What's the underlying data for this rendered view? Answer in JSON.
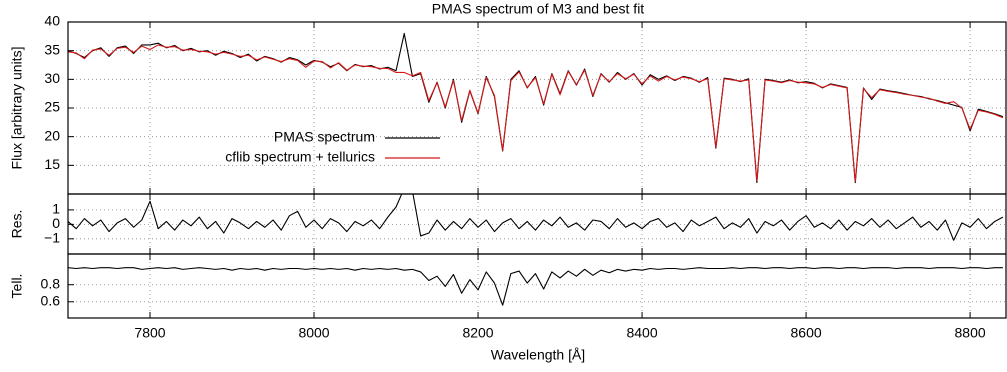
{
  "chart_data": [
    {
      "type": "line",
      "title": "PMAS spectrum of M3 and best fit",
      "ylabel": "Flux [arbitrary units]",
      "x": [
        7700,
        7710,
        7720,
        7730,
        7740,
        7750,
        7760,
        7770,
        7780,
        7790,
        7800,
        7810,
        7820,
        7830,
        7840,
        7850,
        7860,
        7870,
        7880,
        7890,
        7900,
        7910,
        7920,
        7930,
        7940,
        7950,
        7960,
        7970,
        7980,
        7990,
        8000,
        8010,
        8020,
        8030,
        8040,
        8050,
        8060,
        8070,
        8080,
        8090,
        8100,
        8110,
        8120,
        8130,
        8140,
        8150,
        8160,
        8170,
        8180,
        8190,
        8200,
        8210,
        8220,
        8230,
        8240,
        8250,
        8260,
        8270,
        8280,
        8290,
        8300,
        8310,
        8320,
        8330,
        8340,
        8350,
        8360,
        8370,
        8380,
        8390,
        8400,
        8410,
        8420,
        8430,
        8440,
        8450,
        8460,
        8470,
        8480,
        8490,
        8500,
        8510,
        8520,
        8530,
        8540,
        8550,
        8560,
        8570,
        8580,
        8590,
        8600,
        8610,
        8620,
        8630,
        8640,
        8650,
        8660,
        8670,
        8680,
        8690,
        8700,
        8710,
        8720,
        8730,
        8740,
        8750,
        8760,
        8770,
        8780,
        8790,
        8800,
        8810,
        8820,
        8830,
        8840
      ],
      "series": [
        {
          "name": "PMAS spectrum",
          "color": "#000000",
          "values": [
            35,
            34.5,
            33.8,
            35,
            35.5,
            34,
            35.5,
            35.8,
            34.5,
            36,
            36,
            36.3,
            35.5,
            35.9,
            35,
            35.4,
            34.8,
            35,
            34.2,
            34.9,
            34.5,
            33.8,
            34.4,
            33.2,
            34,
            33.6,
            33,
            33.8,
            33.4,
            32.5,
            33.3,
            33,
            32.2,
            32.8,
            31.5,
            32.6,
            32.2,
            32.4,
            31.8,
            32.1,
            31.5,
            38,
            30.5,
            31,
            26,
            29.5,
            25,
            30,
            22.5,
            28,
            24,
            30.5,
            27,
            17.5,
            30,
            31.5,
            28.5,
            30.5,
            25.5,
            31,
            27.5,
            31.5,
            29,
            31.8,
            27,
            31,
            29.5,
            31.2,
            30,
            31,
            29,
            30.8,
            30,
            30.6,
            29.8,
            30.5,
            30.2,
            29.5,
            30.3,
            18,
            30.2,
            30,
            29.6,
            30.1,
            12,
            30,
            29.8,
            29.5,
            29.9,
            29.4,
            29.6,
            29.3,
            28.5,
            29.2,
            28.9,
            28.6,
            12,
            28.5,
            26.5,
            28.3,
            28,
            27.8,
            27.5,
            27.2,
            27,
            26.6,
            26.3,
            25.9,
            25.5,
            25.1,
            21,
            24.8,
            24.4,
            24,
            23.5
          ]
        },
        {
          "name": "cflib spectrum + tellurics",
          "color": "#d81818",
          "values": [
            34.8,
            34.6,
            33.6,
            35.1,
            35.3,
            34.2,
            35.4,
            35.6,
            34.7,
            35.8,
            35.2,
            36,
            35.6,
            35.7,
            35.1,
            35.2,
            34.9,
            34.8,
            34.4,
            34.7,
            34.4,
            34,
            34.2,
            33.4,
            33.9,
            33.5,
            33.1,
            33.6,
            33.3,
            32.1,
            33.2,
            33.1,
            32,
            32.9,
            31.6,
            32.5,
            32.3,
            32.2,
            31.9,
            31.9,
            31.2,
            31.2,
            30.6,
            31.2,
            26.3,
            29.4,
            25.2,
            29.8,
            22.8,
            28.1,
            24.1,
            30.3,
            27.2,
            17.6,
            29.8,
            31.3,
            28.6,
            30.3,
            25.7,
            30.9,
            27.3,
            31.4,
            29.1,
            31.6,
            27.2,
            30.9,
            29.6,
            31,
            30.1,
            30.9,
            29.2,
            30.6,
            29.7,
            30.5,
            29.9,
            30.4,
            30.1,
            29.6,
            30.1,
            18.2,
            30.1,
            29.9,
            29.7,
            29.9,
            12.3,
            29.9,
            29.7,
            29.4,
            29.8,
            29.5,
            29.4,
            29.2,
            28.6,
            29.1,
            28.8,
            28.5,
            12.2,
            28.4,
            26.8,
            28.2,
            27.9,
            27.7,
            27.4,
            27.2,
            26.9,
            26.7,
            26.2,
            25.8,
            26.1,
            25,
            21.3,
            24.6,
            24.3,
            23.9,
            23.3
          ]
        }
      ],
      "legend": "lower left",
      "xlim": [
        7700,
        8845
      ],
      "ylim": [
        10,
        40
      ],
      "yticks": [
        15,
        20,
        25,
        30,
        35,
        40
      ],
      "grid": true
    },
    {
      "type": "line",
      "ylabel": "Res.",
      "x": [
        7700,
        7710,
        7720,
        7730,
        7740,
        7750,
        7760,
        7770,
        7780,
        7790,
        7800,
        7810,
        7820,
        7830,
        7840,
        7850,
        7860,
        7870,
        7880,
        7890,
        7900,
        7910,
        7920,
        7930,
        7940,
        7950,
        7960,
        7970,
        7980,
        7990,
        8000,
        8010,
        8020,
        8030,
        8040,
        8050,
        8060,
        8070,
        8080,
        8090,
        8100,
        8110,
        8120,
        8130,
        8140,
        8150,
        8160,
        8170,
        8180,
        8190,
        8200,
        8210,
        8220,
        8230,
        8240,
        8250,
        8260,
        8270,
        8280,
        8290,
        8300,
        8310,
        8320,
        8330,
        8340,
        8350,
        8360,
        8370,
        8380,
        8390,
        8400,
        8410,
        8420,
        8430,
        8440,
        8450,
        8460,
        8470,
        8480,
        8490,
        8500,
        8510,
        8520,
        8530,
        8540,
        8550,
        8560,
        8570,
        8580,
        8590,
        8600,
        8610,
        8620,
        8630,
        8640,
        8650,
        8660,
        8670,
        8680,
        8690,
        8700,
        8710,
        8720,
        8730,
        8740,
        8750,
        8760,
        8770,
        8780,
        8790,
        8800,
        8810,
        8820,
        8830,
        8840
      ],
      "color": "#000000",
      "values": [
        0.2,
        -0.3,
        0.4,
        -0.1,
        0.3,
        -0.5,
        0.1,
        0.4,
        -0.2,
        0.3,
        1.6,
        -0.3,
        0.2,
        -0.4,
        0.3,
        -0.1,
        0.5,
        -0.3,
        0.2,
        -0.6,
        0.4,
        0.1,
        -0.3,
        0.2,
        -0.2,
        0.3,
        -0.4,
        0.6,
        0.9,
        -0.2,
        0.3,
        -0.3,
        0.4,
        0.1,
        -0.5,
        0.2,
        -0.1,
        0.3,
        -0.3,
        0.5,
        1.2,
        2.5,
        2.3,
        -0.8,
        -0.6,
        0.3,
        -0.4,
        0.2,
        -0.3,
        0.4,
        -0.2,
        0.3,
        -0.5,
        0.1,
        0.4,
        -0.3,
        0.2,
        -0.4,
        0.3,
        -0.1,
        0.5,
        -0.2,
        0.1,
        -0.4,
        0.3,
        0.2,
        -0.3,
        0.4,
        -0.2,
        0.1,
        -0.3,
        0.2,
        0.4,
        -0.2,
        0.1,
        -0.5,
        0.3,
        -0.1,
        0.2,
        0.5,
        -0.3,
        0.1,
        -0.2,
        0.4,
        -0.6,
        0.2,
        -0.1,
        0.3,
        -0.4,
        0.2,
        0.6,
        -0.2,
        0.1,
        -0.3,
        0.3,
        -0.4,
        0.2,
        -0.1,
        0.4,
        -0.2,
        0.3,
        -0.3,
        0.1,
        0.5,
        -0.2,
        0.2,
        -0.4,
        0.3,
        -1.1,
        0.1,
        -0.2,
        0.4,
        -0.3,
        0.2,
        0.5
      ],
      "xlim": [
        7700,
        8845
      ],
      "ylim": [
        -2.05,
        2.1
      ],
      "yticks": [
        {
          "value": -1,
          "label": "−1"
        },
        0,
        1
      ],
      "grid": true
    },
    {
      "type": "line",
      "ylabel": "Tell.",
      "xlabel": "Wavelength [Å]",
      "x": [
        7700,
        7710,
        7720,
        7730,
        7740,
        7750,
        7760,
        7770,
        7780,
        7790,
        7800,
        7810,
        7820,
        7830,
        7840,
        7850,
        7860,
        7870,
        7880,
        7890,
        7900,
        7910,
        7920,
        7930,
        7940,
        7950,
        7960,
        7970,
        7980,
        7990,
        8000,
        8010,
        8020,
        8030,
        8040,
        8050,
        8060,
        8070,
        8080,
        8090,
        8100,
        8110,
        8120,
        8130,
        8140,
        8150,
        8160,
        8170,
        8180,
        8190,
        8200,
        8210,
        8220,
        8230,
        8240,
        8250,
        8260,
        8270,
        8280,
        8290,
        8300,
        8310,
        8320,
        8330,
        8340,
        8350,
        8360,
        8370,
        8380,
        8390,
        8400,
        8410,
        8420,
        8430,
        8440,
        8450,
        8460,
        8470,
        8480,
        8490,
        8500,
        8510,
        8520,
        8530,
        8540,
        8550,
        8560,
        8570,
        8580,
        8590,
        8600,
        8610,
        8620,
        8630,
        8640,
        8650,
        8660,
        8670,
        8680,
        8690,
        8700,
        8710,
        8720,
        8730,
        8740,
        8750,
        8760,
        8770,
        8780,
        8790,
        8800,
        8810,
        8820,
        8830,
        8840
      ],
      "color": "#000000",
      "values": [
        1,
        0.99,
        1,
        0.99,
        1,
        1,
        0.99,
        1,
        1,
        0.98,
        0.99,
        1,
        0.99,
        1,
        0.98,
        0.99,
        1,
        0.99,
        0.98,
        0.99,
        0.97,
        0.99,
        0.98,
        0.99,
        0.97,
        0.99,
        0.98,
        0.99,
        0.99,
        0.98,
        0.99,
        0.98,
        0.99,
        0.98,
        0.99,
        0.97,
        0.99,
        0.98,
        0.99,
        0.98,
        0.99,
        0.97,
        0.98,
        0.95,
        0.85,
        0.9,
        0.78,
        0.92,
        0.7,
        0.86,
        0.74,
        0.95,
        0.82,
        0.56,
        0.93,
        0.96,
        0.82,
        0.93,
        0.75,
        0.95,
        0.88,
        0.96,
        0.9,
        0.98,
        0.91,
        0.97,
        0.94,
        0.98,
        0.96,
        0.98,
        0.97,
        0.99,
        0.98,
        0.99,
        0.99,
        0.98,
        0.99,
        1,
        0.99,
        0.99,
        0.99,
        1,
        0.99,
        1,
        1,
        0.99,
        1,
        1,
        0.99,
        1,
        1,
        0.99,
        1,
        1,
        0.99,
        1,
        1,
        0.99,
        1,
        1,
        1,
        0.99,
        1,
        1,
        1,
        0.99,
        1,
        1,
        1,
        0.99,
        1,
        1,
        0.99,
        1,
        1
      ],
      "xlim": [
        7700,
        8845
      ],
      "ylim": [
        0.41,
        1.16
      ],
      "yticks": [
        0.6,
        0.8
      ],
      "xticks": [
        7800,
        8000,
        8200,
        8400,
        8600,
        8800
      ],
      "grid": true
    }
  ]
}
